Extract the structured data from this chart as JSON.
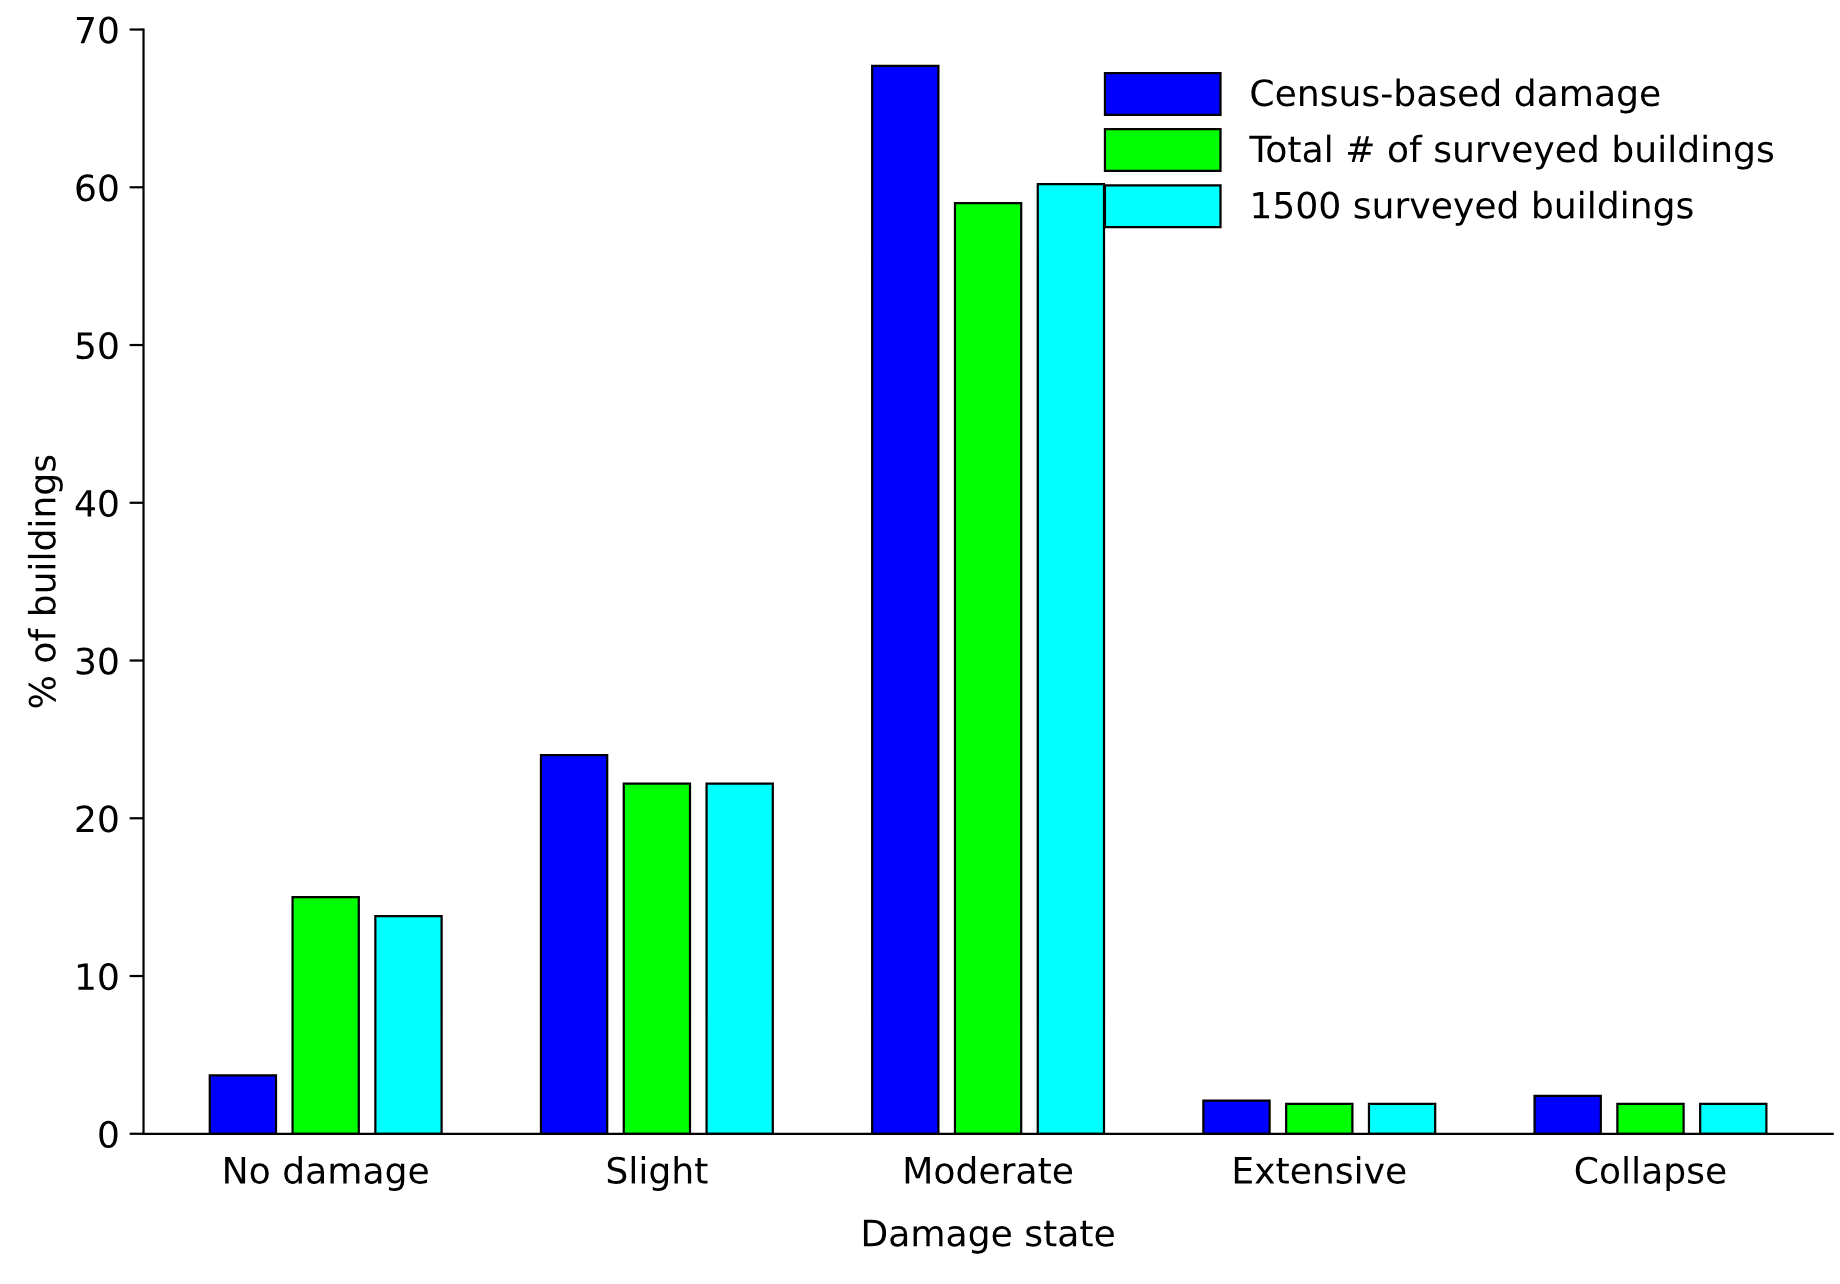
{
  "chart_data": {
    "type": "bar",
    "xlabel": "Damage state",
    "ylabel": "% of buildings",
    "categories": [
      "No damage",
      "Slight",
      "Moderate",
      "Extensive",
      "Collapse"
    ],
    "series": [
      {
        "name": "Census-based damage",
        "color": "#0000ff",
        "values": [
          3.7,
          24.0,
          67.7,
          2.1,
          2.4
        ]
      },
      {
        "name": "Total # of surveyed buildings",
        "color": "#00ff00",
        "values": [
          15.0,
          22.2,
          59.0,
          1.9,
          1.9
        ]
      },
      {
        "name": "1500 surveyed buildings",
        "color": "#00ffff",
        "values": [
          13.8,
          22.2,
          60.2,
          1.9,
          1.9
        ]
      }
    ],
    "ylim": [
      0,
      70
    ],
    "yticks": [
      0,
      10,
      20,
      30,
      40,
      50,
      60,
      70
    ],
    "grid": false,
    "legend": "top right"
  }
}
